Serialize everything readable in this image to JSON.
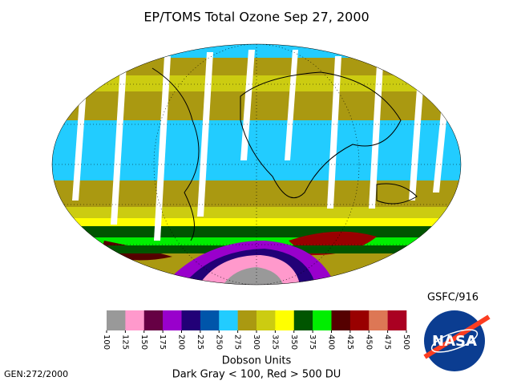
{
  "title": "EP/TOMS Total Ozone Sep 27, 2000",
  "source": "GSFC/916",
  "colorbar": {
    "ticks": [
      100,
      125,
      150,
      175,
      200,
      225,
      250,
      275,
      300,
      325,
      350,
      375,
      400,
      425,
      450,
      475,
      500
    ],
    "colors": [
      "#999999",
      "#ff99cc",
      "#660044",
      "#9900cc",
      "#220077",
      "#0055aa",
      "#22ccff",
      "#aa9911",
      "#cccc11",
      "#ffff00",
      "#005500",
      "#00ee00",
      "#550000",
      "#990000",
      "#dd7755",
      "#aa0022"
    ],
    "unit_label": "Dobson Units",
    "note": "Dark Gray < 100, Red > 500 DU"
  },
  "logo": "NASA",
  "generation": "GEN:272/2000"
}
